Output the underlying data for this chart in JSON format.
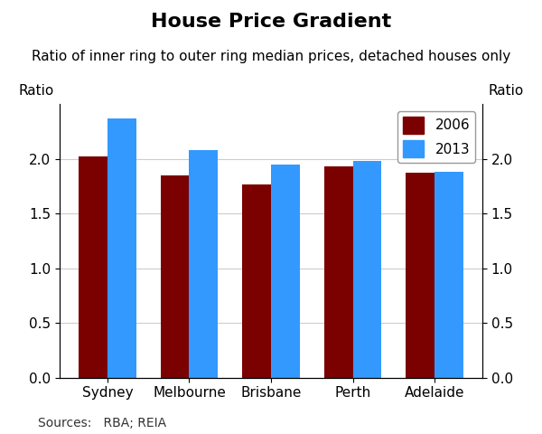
{
  "title": "House Price Gradient",
  "subtitle": "Ratio of inner ring to outer ring median prices, detached houses only",
  "ylabel": "Ratio",
  "categories": [
    "Sydney",
    "Melbourne",
    "Brisbane",
    "Perth",
    "Adelaide"
  ],
  "series": {
    "2006": [
      2.02,
      1.85,
      1.77,
      1.93,
      1.87
    ],
    "2013": [
      2.37,
      2.08,
      1.95,
      1.98,
      1.88
    ]
  },
  "color_2006": "#7B0000",
  "color_2013": "#3399FF",
  "ylim": [
    0.0,
    2.5
  ],
  "yticks": [
    0.0,
    0.5,
    1.0,
    1.5,
    2.0
  ],
  "source_text": "Sources:   RBA; REIA",
  "bar_width": 0.35,
  "background_color": "#FFFFFF",
  "plot_bg_color": "#FFFFFF",
  "grid_color": "#CCCCCC",
  "title_fontsize": 16,
  "subtitle_fontsize": 11,
  "tick_fontsize": 11,
  "legend_fontsize": 11,
  "source_fontsize": 10
}
